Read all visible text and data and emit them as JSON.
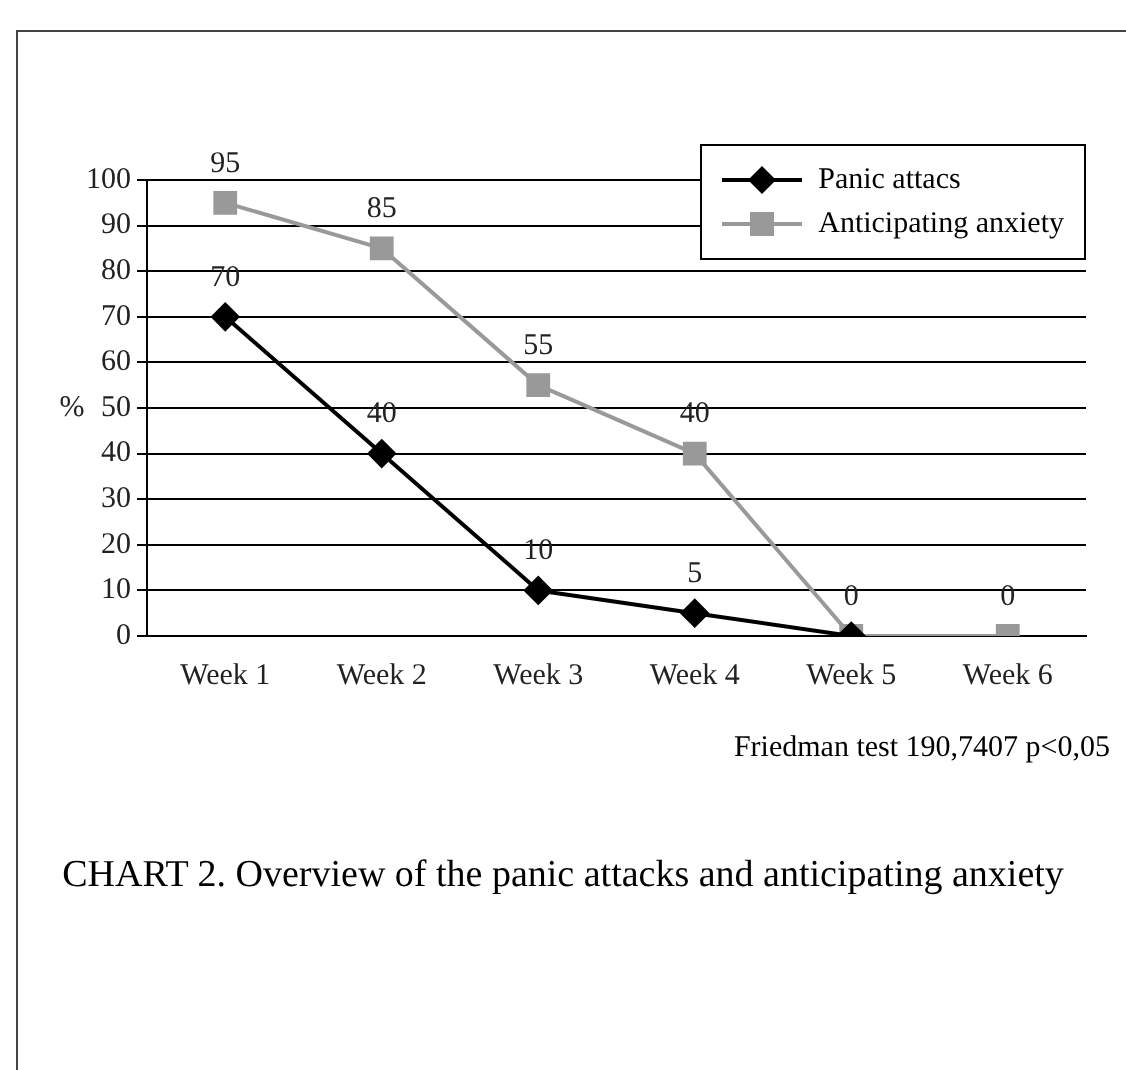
{
  "chart_data": {
    "type": "line",
    "title": "CHART 2. Overview of the panic attacks and anticipating anxiety",
    "ylabel": "%",
    "annotations": [
      "Friedman test 190,7407 p<0,05"
    ],
    "categories": [
      "Week 1",
      "Week 2",
      "Week 3",
      "Week 4",
      "Week 5",
      "Week 6"
    ],
    "series": [
      {
        "name": "Panic attacs",
        "color": "#000000",
        "marker": "diamond",
        "values": [
          70,
          40,
          10,
          5,
          0,
          null
        ],
        "value_labels": [
          "70",
          "40",
          "10",
          "5",
          null,
          null
        ]
      },
      {
        "name": "Anticipating anxiety",
        "color": "#999999",
        "marker": "square",
        "values": [
          95,
          85,
          55,
          40,
          0,
          0
        ],
        "value_labels": [
          "95",
          "85",
          "55",
          "40",
          "0",
          "0"
        ]
      }
    ],
    "ylim": [
      0,
      100
    ],
    "yticks": [
      0,
      10,
      20,
      30,
      40,
      50,
      60,
      70,
      80,
      90,
      100
    ],
    "grid": "y",
    "legend": "top right"
  }
}
